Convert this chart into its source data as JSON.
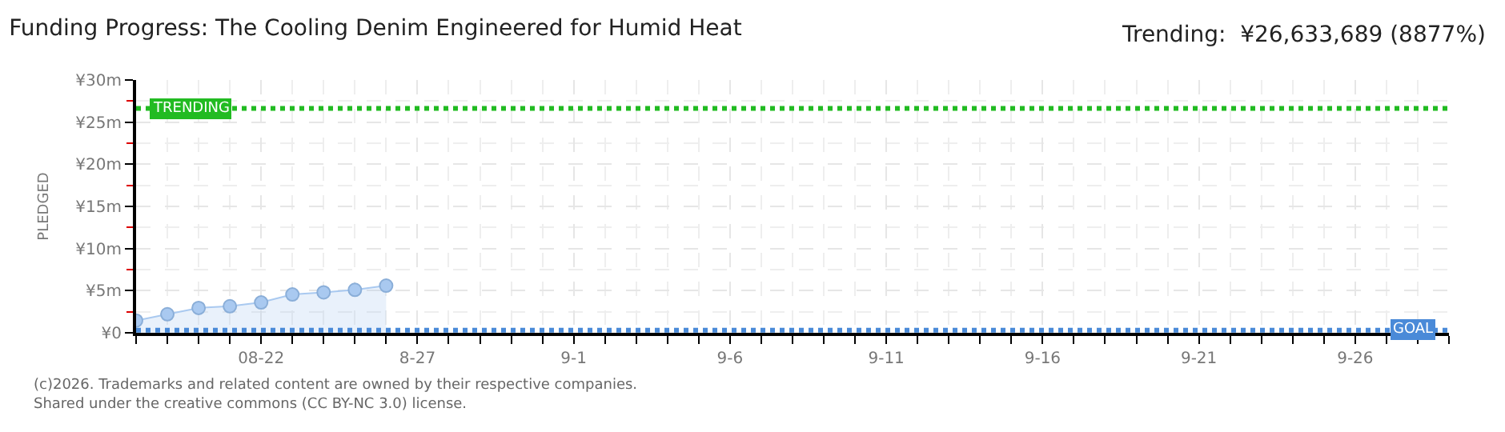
{
  "chart_data": {
    "type": "area",
    "title": "Funding Progress: The Cooling Denim Engineered for Humid Heat",
    "subtitle": "Trending:  ¥26,633,689 (8877%)",
    "ylabel": "PLEDGED",
    "x": [
      "--08-18",
      "--08-19",
      "--08-20",
      "--08-21",
      "--08-22",
      "--08-23",
      "--08-24",
      "--08-25",
      "--08-26"
    ],
    "series": [
      {
        "color": "#a9c9f0",
        "values": [
          1.45,
          2.2,
          2.95,
          3.15,
          3.6,
          4.55,
          4.8,
          5.1,
          5.6
        ]
      }
    ],
    "xlim": [
      "--08-18",
      "--09-29"
    ],
    "xticks": [
      {
        "value": "--08-22",
        "label": "08-22"
      },
      {
        "value": "--08-27",
        "label": "8-27"
      },
      {
        "value": "--09-01",
        "label": "9-1"
      },
      {
        "value": "--09-06",
        "label": "9-6"
      },
      {
        "value": "--09-11",
        "label": "9-11"
      },
      {
        "value": "--09-16",
        "label": "9-16"
      },
      {
        "value": "--09-21",
        "label": "9-21"
      },
      {
        "value": "--09-26",
        "label": "9-26"
      }
    ],
    "ylim": [
      0,
      30
    ],
    "yticks": [
      {
        "value": 0,
        "label": "¥0"
      },
      {
        "value": 5,
        "label": "¥5m"
      },
      {
        "value": 10,
        "label": "¥10m"
      },
      {
        "value": 15,
        "label": "¥15m"
      },
      {
        "value": 20,
        "label": "¥20m"
      },
      {
        "value": 25,
        "label": "¥25m"
      },
      {
        "value": 30,
        "label": "¥30m"
      }
    ],
    "ref_lines": [
      {
        "axis": "y",
        "value": 26.63,
        "label": "TRENDING",
        "color": "#22bb22",
        "line_style": "dotted"
      },
      {
        "axis": "y",
        "value": 0.3,
        "label": "GOAL",
        "color": "#4a8ad8",
        "line_style": "dotted"
      }
    ],
    "annotations": [
      "(c)2026. Trademarks and related content are owned by their respective companies.",
      "Shared under the creative commons (CC BY-NC 3.0) license."
    ],
    "grid": true,
    "marker": "circle",
    "line_style": "solid"
  }
}
